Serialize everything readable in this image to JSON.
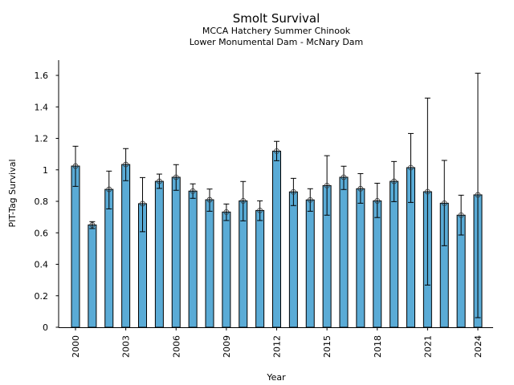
{
  "chart_data": {
    "type": "bar",
    "title": "Smolt Survival",
    "subtitle_lines": [
      "MCCA Hatchery Summer Chinook",
      "Lower Monumental Dam - McNary Dam"
    ],
    "xlabel": "Year",
    "ylabel": "PIT-Tag Survival",
    "ylim": [
      0,
      1.7
    ],
    "yticks": [
      0,
      0.2,
      0.4,
      0.6,
      0.8,
      1,
      1.2,
      1.4,
      1.6
    ],
    "ytick_labels": [
      "0",
      "0.2",
      "0.4",
      "0.6",
      "0.8",
      "1",
      "1.2",
      "1.4",
      "1.6"
    ],
    "xlim": [
      1999,
      2025
    ],
    "xticks": [
      2000,
      2003,
      2006,
      2009,
      2012,
      2015,
      2018,
      2021,
      2024
    ],
    "xtick_labels": [
      "2000",
      "2003",
      "2006",
      "2009",
      "2012",
      "2015",
      "2018",
      "2021",
      "2024"
    ],
    "grid": false,
    "legend": "none",
    "bar_color": "#5aabd6",
    "edge_color": "#000000",
    "categories": [
      2000,
      2001,
      2002,
      2003,
      2004,
      2005,
      2006,
      2007,
      2008,
      2009,
      2010,
      2011,
      2012,
      2013,
      2014,
      2015,
      2016,
      2017,
      2018,
      2019,
      2020,
      2021,
      2022,
      2023,
      2024
    ],
    "values": [
      1.024,
      0.65,
      0.876,
      1.034,
      0.785,
      0.927,
      0.953,
      0.865,
      0.81,
      0.732,
      0.803,
      0.742,
      1.119,
      0.86,
      0.809,
      0.9,
      0.953,
      0.88,
      0.803,
      0.927,
      1.014,
      0.861,
      0.788,
      0.712,
      0.841
    ],
    "error_upper": [
      1.15,
      0.671,
      0.992,
      1.135,
      0.951,
      0.973,
      1.033,
      0.911,
      0.878,
      0.783,
      0.926,
      0.803,
      1.181,
      0.946,
      0.88,
      1.09,
      1.023,
      0.976,
      0.915,
      1.053,
      1.231,
      1.456,
      1.06,
      0.839,
      1.614
    ],
    "error_lower": [
      0.895,
      0.627,
      0.752,
      0.931,
      0.607,
      0.882,
      0.87,
      0.819,
      0.737,
      0.678,
      0.676,
      0.678,
      1.058,
      0.773,
      0.737,
      0.712,
      0.875,
      0.788,
      0.697,
      0.798,
      0.793,
      0.268,
      0.518,
      0.586,
      0.061
    ]
  }
}
